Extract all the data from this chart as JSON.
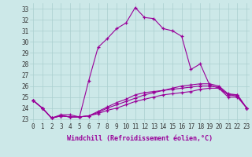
{
  "xlabel": "Windchill (Refroidissement éolien,°C)",
  "bg_color": "#cce8e8",
  "grid_color": "#aacfcf",
  "line_color": "#990099",
  "x_ticks": [
    0,
    1,
    2,
    3,
    4,
    5,
    6,
    7,
    8,
    9,
    10,
    11,
    12,
    13,
    14,
    15,
    16,
    17,
    18,
    19,
    20,
    21,
    22,
    23
  ],
  "y_ticks": [
    23,
    24,
    25,
    26,
    27,
    28,
    29,
    30,
    31,
    32,
    33
  ],
  "xlim": [
    -0.3,
    23.3
  ],
  "ylim": [
    22.7,
    33.5
  ],
  "series": [
    [
      24.7,
      24.0,
      23.1,
      23.4,
      23.4,
      23.2,
      26.5,
      29.5,
      30.3,
      31.2,
      31.7,
      33.1,
      32.2,
      32.1,
      31.2,
      31.0,
      30.5,
      27.5,
      28.0,
      26.1,
      25.8,
      25.2,
      25.2,
      24.0
    ],
    [
      24.7,
      24.0,
      23.1,
      23.3,
      23.2,
      23.2,
      23.3,
      23.5,
      23.8,
      24.0,
      24.3,
      24.6,
      24.8,
      25.0,
      25.2,
      25.3,
      25.4,
      25.5,
      25.7,
      25.8,
      25.8,
      25.0,
      25.0,
      24.0
    ],
    [
      24.7,
      24.0,
      23.1,
      23.3,
      23.2,
      23.2,
      23.3,
      23.6,
      24.0,
      24.3,
      24.6,
      24.9,
      25.2,
      25.4,
      25.6,
      25.8,
      26.0,
      26.1,
      26.2,
      26.2,
      26.0,
      25.3,
      25.2,
      24.0
    ],
    [
      24.7,
      24.0,
      23.1,
      23.3,
      23.2,
      23.2,
      23.3,
      23.7,
      24.1,
      24.5,
      24.8,
      25.2,
      25.4,
      25.5,
      25.6,
      25.7,
      25.8,
      25.9,
      26.0,
      26.0,
      25.9,
      25.2,
      25.1,
      24.0
    ]
  ],
  "xlabel_fontsize": 6.0,
  "tick_fontsize": 5.5
}
